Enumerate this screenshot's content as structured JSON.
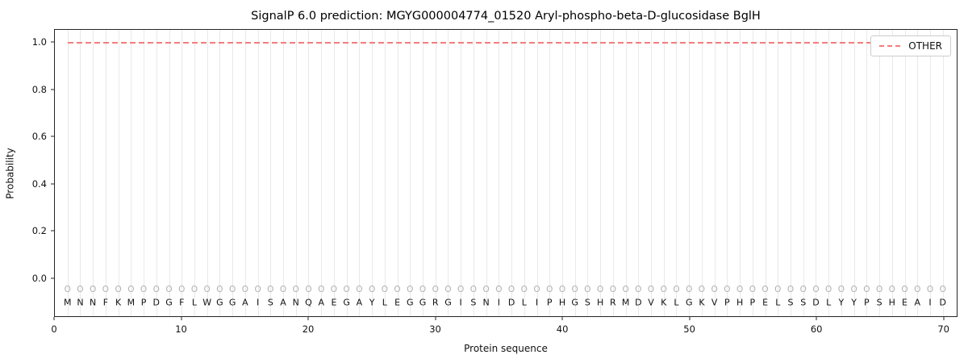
{
  "chart_data": {
    "type": "line",
    "title": "SignalP 6.0 prediction: MGYG000004774_01520 Aryl-phospho-beta-D-glucosidase BglH",
    "xlabel": "Protein sequence",
    "ylabel": "Probability",
    "xlim": [
      0,
      71.1
    ],
    "ylim": [
      -0.164,
      1.055
    ],
    "xticks": [
      0,
      10,
      20,
      30,
      40,
      50,
      60,
      70
    ],
    "yticks": [
      0.0,
      0.2,
      0.4,
      0.6,
      0.8,
      1.0
    ],
    "grid": "vertical-line-per-residue",
    "legend_position": "upper right",
    "series": [
      {
        "name": "OTHER",
        "style": "dashed",
        "color": "#f47c7c",
        "x_start": 1,
        "x_end": 70,
        "constant_y": 1.0
      }
    ],
    "sequence": "MNNFKMPDGFLWGGAISANQAEGAYLEGGRGISNIDLIPHGSHRMDVKLGKVPHPELSSDLYYPSHEAID",
    "per_residue_label": "O",
    "marker_y": -0.05,
    "letter_y": -0.105,
    "colors": {
      "threshold_line": "#f47c7c",
      "grid": "#e9e9e9",
      "marker": "#b0b0b0",
      "letter": "#111111",
      "axis": "#262626"
    }
  }
}
